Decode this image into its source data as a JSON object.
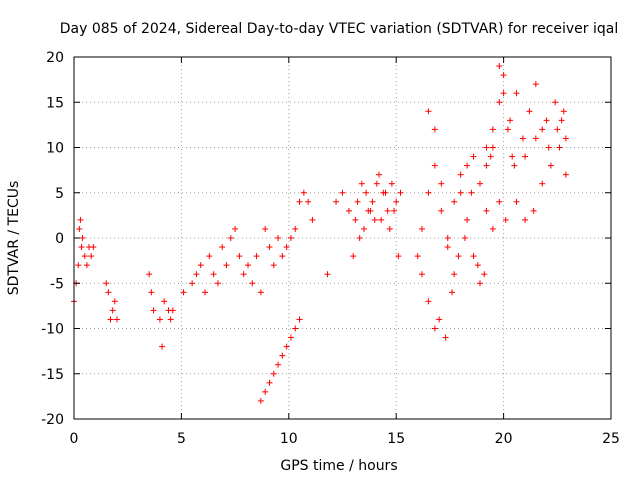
{
  "chart_data": {
    "type": "scatter",
    "title": "Day 085 of 2024, Sidereal Day-to-day VTEC variation (SDTVAR) for receiver iqal",
    "xlabel": "GPS time / hours",
    "ylabel": "SDTVAR / TECUs",
    "xlim": [
      0,
      25
    ],
    "ylim": [
      -20,
      20
    ],
    "xticks": [
      0,
      5,
      10,
      15,
      20,
      25
    ],
    "yticks": [
      -20,
      -15,
      -10,
      -5,
      0,
      5,
      10,
      15,
      20
    ],
    "grid": true,
    "marker": "+",
    "color": "#ff0000",
    "series": [
      {
        "name": "SDTVAR",
        "x": [
          0.0,
          0.1,
          0.2,
          0.25,
          0.3,
          0.35,
          0.4,
          0.5,
          0.6,
          0.7,
          0.8,
          0.9,
          1.5,
          1.6,
          1.7,
          1.8,
          1.9,
          2.0,
          3.5,
          3.6,
          3.7,
          4.0,
          4.1,
          4.2,
          4.4,
          4.5,
          4.6,
          5.1,
          5.5,
          5.7,
          5.9,
          6.1,
          6.3,
          6.5,
          6.7,
          6.9,
          7.1,
          7.3,
          7.5,
          7.7,
          7.9,
          8.1,
          8.3,
          8.5,
          8.7,
          8.9,
          9.1,
          9.3,
          9.5,
          9.7,
          9.9,
          10.1,
          10.3,
          8.7,
          8.9,
          9.1,
          9.3,
          9.5,
          9.7,
          9.9,
          10.1,
          10.3,
          10.5,
          10.5,
          10.7,
          10.9,
          11.1,
          11.8,
          12.2,
          12.5,
          12.8,
          13.0,
          13.2,
          13.4,
          13.6,
          13.8,
          14.0,
          14.2,
          14.4,
          14.6,
          14.8,
          15.0,
          15.2,
          13.1,
          13.3,
          13.5,
          13.7,
          13.9,
          14.1,
          14.3,
          14.5,
          14.7,
          14.9,
          15.1,
          16.2,
          16.5,
          16.8,
          17.0,
          17.3,
          17.6,
          17.9,
          18.2,
          18.5,
          18.8,
          19.1,
          19.4,
          16.5,
          16.8,
          17.1,
          17.4,
          17.7,
          18.0,
          18.3,
          18.6,
          18.9,
          19.2,
          19.5,
          19.8,
          20.0,
          20.3,
          20.6,
          20.9,
          21.2,
          21.5,
          21.8,
          22.1,
          22.4,
          22.7,
          22.9,
          19.8,
          20.0,
          20.2,
          20.4,
          20.6,
          21.0,
          21.4,
          21.8,
          22.2,
          22.6,
          22.9,
          19.2,
          19.5,
          19.8,
          20.1,
          20.5,
          21.0,
          21.5,
          22.0,
          22.5,
          22.8,
          16.0,
          16.2,
          16.5,
          16.8,
          17.1,
          17.4,
          17.7,
          18.0,
          18.3,
          18.6,
          18.9,
          19.2,
          19.5
        ],
        "y": [
          -7,
          -5,
          -3,
          1,
          2,
          -1,
          0,
          -2,
          -3,
          -1,
          -2,
          -1,
          -5,
          -6,
          -9,
          -8,
          -7,
          -9,
          -4,
          -6,
          -8,
          -9,
          -12,
          -7,
          -8,
          -9,
          -8,
          -6,
          -5,
          -4,
          -3,
          -6,
          -2,
          -4,
          -5,
          -1,
          -3,
          0,
          1,
          -2,
          -4,
          -3,
          -5,
          -2,
          -6,
          1,
          -1,
          -3,
          0,
          -2,
          -1,
          0,
          1,
          -18,
          -17,
          -16,
          -15,
          -14,
          -13,
          -12,
          -11,
          -10,
          -9,
          4,
          5,
          4,
          2,
          -4,
          4,
          5,
          3,
          -2,
          4,
          6,
          5,
          3,
          2,
          7,
          5,
          3,
          6,
          4,
          5,
          2,
          0,
          1,
          3,
          4,
          6,
          2,
          5,
          1,
          3,
          -2,
          -4,
          -7,
          -10,
          -9,
          -11,
          -6,
          -2,
          0,
          5,
          -3,
          -4,
          9,
          14,
          12,
          6,
          0,
          -4,
          5,
          8,
          -2,
          -5,
          10,
          12,
          15,
          18,
          13,
          16,
          11,
          14,
          17,
          12,
          10,
          15,
          13,
          11,
          19,
          16,
          12,
          9,
          4,
          2,
          3,
          6,
          8,
          10,
          7,
          3,
          1,
          4,
          2,
          8,
          9,
          11,
          13,
          12,
          14,
          -2,
          1,
          5,
          8,
          3,
          -1,
          4,
          7,
          2,
          9,
          6,
          8,
          10
        ]
      }
    ]
  }
}
